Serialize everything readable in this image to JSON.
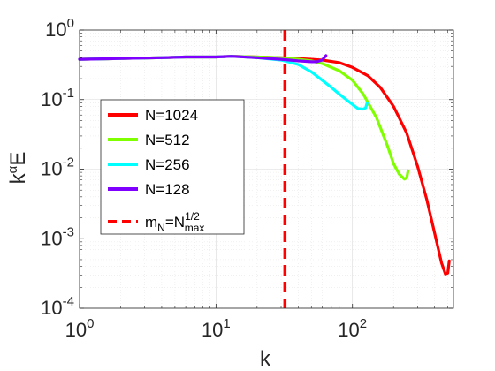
{
  "chart_data": {
    "type": "line",
    "xscale": "log",
    "yscale": "log",
    "xlim": [
      1,
      550
    ],
    "ylim": [
      0.0001,
      1
    ],
    "grid": true,
    "minor_grid": true,
    "xlabel": "k",
    "ylabel": {
      "base": "k",
      "sup": "α",
      "rest": "E"
    },
    "x_tick_labels": [
      {
        "value": 1,
        "base": "10",
        "exp": "0"
      },
      {
        "value": 10,
        "base": "10",
        "exp": "1"
      },
      {
        "value": 100,
        "base": "10",
        "exp": "2"
      }
    ],
    "y_tick_labels": [
      {
        "value": 1,
        "base": "10",
        "exp": "0"
      },
      {
        "value": 0.1,
        "base": "10",
        "exp": "-1"
      },
      {
        "value": 0.01,
        "base": "10",
        "exp": "-2"
      },
      {
        "value": 0.001,
        "base": "10",
        "exp": "-3"
      },
      {
        "value": 0.0001,
        "base": "10",
        "exp": "-4"
      }
    ],
    "legend_position": "center-left",
    "series": [
      {
        "name": "N=1024",
        "color": "#ff0000",
        "x": [
          1,
          2,
          4,
          6,
          10,
          13,
          20,
          30,
          40,
          50,
          60,
          80,
          100,
          130,
          160,
          200,
          250,
          300,
          350,
          400,
          450,
          480,
          500,
          512
        ],
        "y": [
          0.38,
          0.39,
          0.4,
          0.41,
          0.41,
          0.42,
          0.41,
          0.4,
          0.39,
          0.38,
          0.37,
          0.34,
          0.29,
          0.22,
          0.15,
          0.08,
          0.033,
          0.011,
          0.0037,
          0.0012,
          0.00045,
          0.00031,
          0.00032,
          0.00048
        ]
      },
      {
        "name": "N=512",
        "color": "#80ff00",
        "x": [
          1,
          2,
          4,
          6,
          10,
          13,
          20,
          30,
          40,
          50,
          60,
          80,
          100,
          120,
          150,
          180,
          200,
          220,
          240,
          250,
          256
        ],
        "y": [
          0.38,
          0.39,
          0.4,
          0.41,
          0.41,
          0.42,
          0.41,
          0.4,
          0.38,
          0.36,
          0.33,
          0.26,
          0.19,
          0.12,
          0.055,
          0.022,
          0.012,
          0.0085,
          0.0072,
          0.0075,
          0.0095
        ]
      },
      {
        "name": "N=256",
        "color": "#00ffff",
        "x": [
          1,
          2,
          4,
          6,
          10,
          13,
          20,
          30,
          40,
          50,
          60,
          70,
          80,
          100,
          110,
          120,
          125,
          128
        ],
        "y": [
          0.38,
          0.39,
          0.4,
          0.41,
          0.41,
          0.42,
          0.4,
          0.37,
          0.32,
          0.25,
          0.19,
          0.15,
          0.12,
          0.085,
          0.074,
          0.073,
          0.076,
          0.09
        ]
      },
      {
        "name": "N=128",
        "color": "#8000ff",
        "x": [
          1,
          2,
          4,
          6,
          10,
          13,
          20,
          30,
          40,
          50,
          55,
          60,
          62,
          64
        ],
        "y": [
          0.38,
          0.39,
          0.4,
          0.41,
          0.41,
          0.42,
          0.4,
          0.38,
          0.36,
          0.35,
          0.35,
          0.37,
          0.4,
          0.43
        ]
      }
    ],
    "vline": {
      "name": "m_N = N_max^1/2",
      "x": 32,
      "color": "#ff0000",
      "style": "dashed",
      "legend": {
        "main": "m",
        "sub1": "N",
        "eq": "=N",
        "sup": "1/2",
        "sub2": "max"
      }
    }
  }
}
